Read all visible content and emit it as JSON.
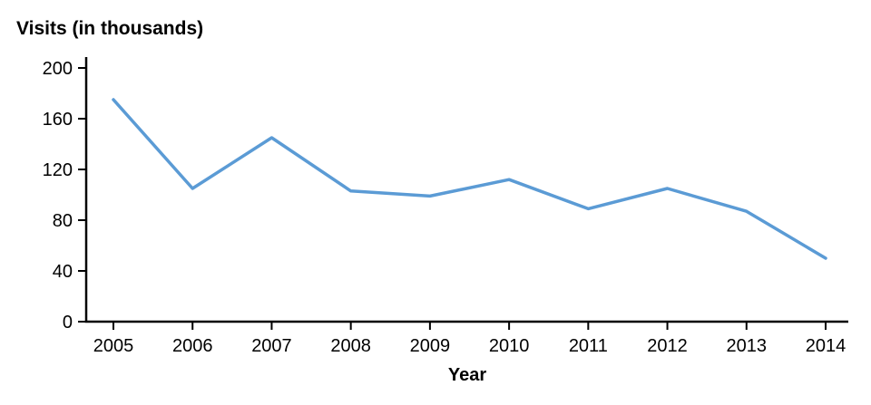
{
  "chart_data": {
    "type": "line",
    "title": "Visits (in thousands)",
    "xlabel": "Year",
    "ylabel": "Visits (in thousands)",
    "categories": [
      "2005",
      "2006",
      "2007",
      "2008",
      "2009",
      "2010",
      "2011",
      "2012",
      "2013",
      "2014"
    ],
    "values": [
      175,
      105,
      145,
      103,
      99,
      112,
      89,
      105,
      87,
      50
    ],
    "ylim": [
      0,
      200
    ],
    "yticks": [
      0,
      40,
      80,
      120,
      160,
      200
    ],
    "line_color": "#5b9bd5",
    "axis_color": "#000000",
    "grid": false,
    "legend": "none"
  }
}
